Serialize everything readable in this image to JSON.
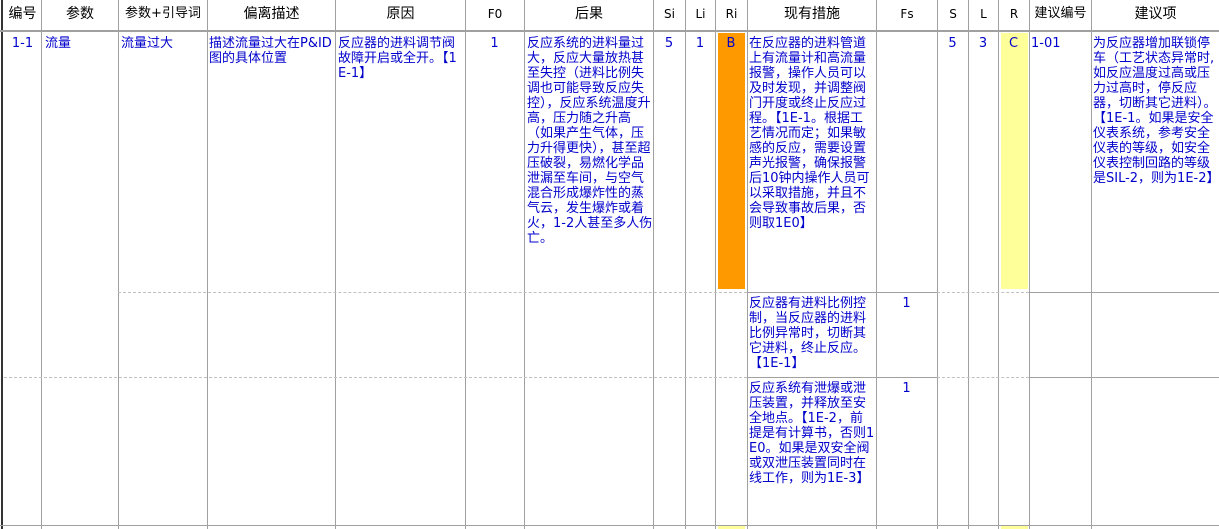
{
  "headers": [
    "编号",
    "参数",
    "参数+引导词",
    "偏离描述",
    "原因",
    "F0",
    "后果",
    "Si",
    "Li",
    "Ri",
    "现有措施",
    "Fs",
    "S",
    "L",
    "R",
    "建议编号",
    "建议项"
  ],
  "colors": {
    "text": "#0000cc",
    "ri_fill": "#ff9900",
    "r_fill": "#ffff99",
    "grid": "#a0a0a0"
  },
  "row": {
    "id": "1-1",
    "param": "流量",
    "param_guide": "流量过大",
    "deviation": "描述流量过大在P&ID图的具体位置",
    "cause": "反应器的进料调节阀故障开启或全开。【1E-1】",
    "f0": "1",
    "consequence": "反应系统的进料量过大，反应大量放热甚至失控（进料比例失调也可能导致反应失控），反应系统温度升高，压力随之升高（如果产生气体，压力升得更快），甚至超压破裂，易燃化学品泄漏至车间，与空气混合形成爆炸性的蒸气云，发生爆炸或着火，1-2人甚至多人伤亡。",
    "si": "5",
    "li": "1",
    "ri": "B",
    "s": "5",
    "l": "3",
    "r": "C",
    "rec_id": "1-01",
    "recommendation": "为反应器增加联锁停车（工艺状态异常时,如反应温度过高或压力过高时，停反应器，切断其它进料）。【1E-1。如果是安全仪表系统，参考安全仪表的等级，如安全仪表控制回路的等级是SIL-2，则为1E-2】",
    "measures": [
      {
        "text": "在反应器的进料管道上有流量计和高流量报警，操作人员可以及时发现，并调整阀门开度或终止反应过程。【1E-1。根据工艺情况而定；如果敏感的反应，需要设置声光报警，确保报警后10钟内操作人员可以采取措施，并且不会导致事故后果，否则取1E0】",
        "fs": ""
      },
      {
        "text": "反应器有进料比例控制，当反应器的进料比例异常时，切断其它进料，终止反应。【1E-1】",
        "fs": "1"
      },
      {
        "text": "反应系统有泄爆或泄压装置，并释放至安全地点。【1E-2，前提是有计算书，否则1E0。如果是双安全阀或双泄压装置同时在线工作，则为1E-3】",
        "fs": "1"
      }
    ]
  }
}
